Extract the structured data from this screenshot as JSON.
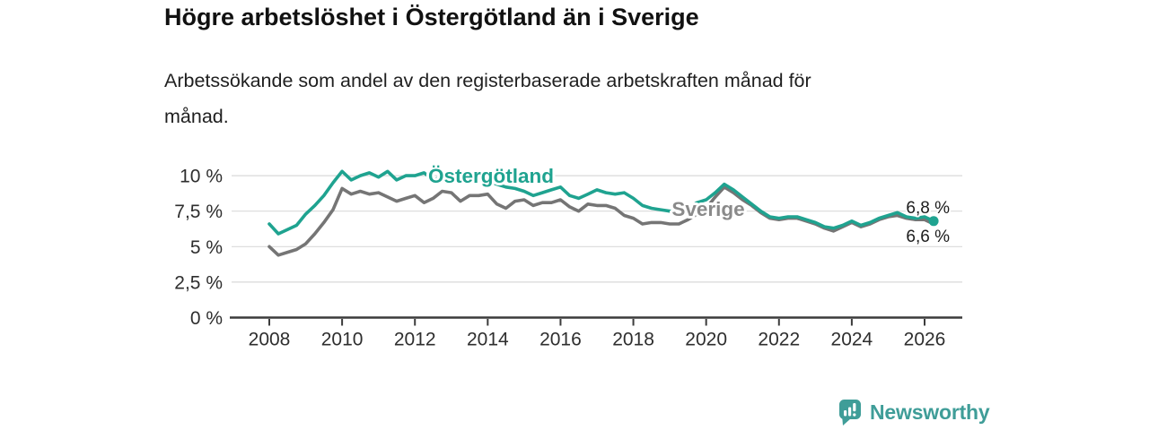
{
  "title": "Högre arbetslöshet i Östergötland än i Sverige",
  "subtitle_lines": [
    "Arbetssökande som andel av den registerbaserade arbetskraften månad för",
    "månad."
  ],
  "colors": {
    "ostergotland_teal": "#1fa390",
    "sverige_gray": "#757575",
    "sverige_label_gray": "#8a8a8a",
    "axis_text": "#2e2e2e",
    "end_label_black": "#1c1c1c",
    "gridline_gray": "#d9d9d9",
    "newsworthy_teal": "#3f9d98"
  },
  "branding": {
    "wordmark": "Newsworthy",
    "logo_icon": "bar-chart-speech-bubble-icon"
  },
  "chart_data": {
    "type": "line",
    "title": "Högre arbetslöshet i Östergötland än i Sverige",
    "xlabel": "",
    "ylabel": "",
    "grid": "horizontal",
    "legend": "inline-labels",
    "xlim": [
      2007.0,
      2027.0
    ],
    "ylim": [
      0,
      10.8
    ],
    "x_start": 2008.0,
    "x_step": 0.25,
    "yticks": [
      {
        "v": 0,
        "label": "0 %"
      },
      {
        "v": 2.5,
        "label": "2,5 %"
      },
      {
        "v": 5,
        "label": "5 %"
      },
      {
        "v": 7.5,
        "label": "7,5 %"
      },
      {
        "v": 10,
        "label": "10 %"
      }
    ],
    "xticks": [
      {
        "v": 2008,
        "label": "2008"
      },
      {
        "v": 2010,
        "label": "2010"
      },
      {
        "v": 2012,
        "label": "2012"
      },
      {
        "v": 2014,
        "label": "2014"
      },
      {
        "v": 2016,
        "label": "2016"
      },
      {
        "v": 2018,
        "label": "2018"
      },
      {
        "v": 2020,
        "label": "2020"
      },
      {
        "v": 2022,
        "label": "2022"
      },
      {
        "v": 2024,
        "label": "2024"
      },
      {
        "v": 2026,
        "label": "2026"
      }
    ],
    "series": [
      {
        "id": "sverige",
        "inline_label": "Sverige",
        "end_label": "6,6 %",
        "end_value": 6.6,
        "color": "#757575",
        "end_dot": false,
        "values": [
          5.0,
          4.4,
          4.6,
          4.8,
          5.2,
          5.9,
          6.7,
          7.6,
          9.1,
          8.7,
          8.9,
          8.7,
          8.8,
          8.5,
          8.2,
          8.4,
          8.6,
          8.1,
          8.4,
          8.9,
          8.8,
          8.2,
          8.6,
          8.6,
          8.7,
          8.0,
          7.7,
          8.2,
          8.3,
          7.9,
          8.1,
          8.1,
          8.3,
          7.8,
          7.5,
          8.0,
          7.9,
          7.9,
          7.7,
          7.2,
          7.0,
          6.6,
          6.7,
          6.7,
          6.6,
          6.6,
          6.9,
          7.3,
          7.7,
          8.5,
          9.2,
          8.8,
          8.3,
          7.9,
          7.4,
          7.0,
          6.9,
          7.0,
          7.0,
          6.8,
          6.6,
          6.3,
          6.1,
          6.4,
          6.7,
          6.4,
          6.6,
          6.9,
          7.1,
          7.2,
          7.0,
          6.9,
          6.9,
          6.6
        ]
      },
      {
        "id": "ostergotland",
        "inline_label": "Östergötland",
        "end_label": "6,8 %",
        "end_value": 6.8,
        "color": "#1fa390",
        "end_dot": true,
        "values": [
          6.6,
          5.9,
          6.2,
          6.5,
          7.3,
          7.9,
          8.6,
          9.5,
          10.3,
          9.7,
          10.0,
          10.2,
          9.9,
          10.3,
          9.7,
          10.0,
          10.0,
          10.2,
          9.7,
          9.9,
          10.0,
          9.7,
          9.9,
          9.7,
          9.6,
          9.4,
          9.2,
          9.1,
          8.9,
          8.6,
          8.8,
          9.0,
          9.2,
          8.6,
          8.4,
          8.7,
          9.0,
          8.8,
          8.7,
          8.8,
          8.4,
          7.9,
          7.7,
          7.6,
          7.5,
          7.5,
          7.7,
          8.1,
          8.3,
          8.8,
          9.4,
          9.0,
          8.5,
          8.0,
          7.5,
          7.1,
          7.0,
          7.1,
          7.1,
          6.9,
          6.7,
          6.4,
          6.3,
          6.5,
          6.8,
          6.5,
          6.7,
          7.0,
          7.2,
          7.4,
          7.1,
          7.0,
          7.1,
          6.8
        ]
      }
    ]
  }
}
